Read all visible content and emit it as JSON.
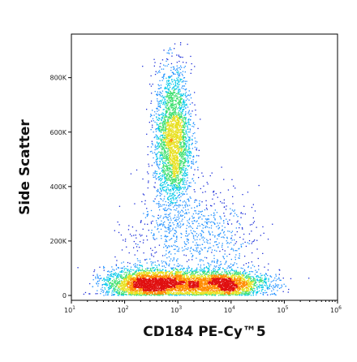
{
  "chart_data": {
    "type": "scatter",
    "style": "density-colored flow cytometry dot plot",
    "xlabel": "CD184 PE-Cy™5",
    "ylabel": "Side Scatter",
    "x_scale": "log",
    "xlim": [
      10,
      1000000
    ],
    "ylim": [
      0,
      960000
    ],
    "x_ticks": [
      {
        "value": 10,
        "base": "10",
        "exp": "1"
      },
      {
        "value": 100,
        "base": "10",
        "exp": "2"
      },
      {
        "value": 1000,
        "base": "10",
        "exp": "3"
      },
      {
        "value": 10000,
        "base": "10",
        "exp": "4"
      },
      {
        "value": 100000,
        "base": "10",
        "exp": "5"
      },
      {
        "value": 1000000,
        "base": "10",
        "exp": "6"
      }
    ],
    "y_ticks": [
      {
        "value": 0,
        "label": "0"
      },
      {
        "value": 200000,
        "label": "200K"
      },
      {
        "value": 400000,
        "label": "400K"
      },
      {
        "value": 600000,
        "label": "600K"
      },
      {
        "value": 800000,
        "label": "800K"
      }
    ],
    "grid": false,
    "legend": "none",
    "density_colors": [
      "#1a2cd8",
      "#1e90ff",
      "#00c8e8",
      "#40e070",
      "#e8e020",
      "#ff8c00",
      "#e01010"
    ],
    "populations": [
      {
        "x_center": 250,
        "y_center": 45000,
        "x_spread_decades": 0.38,
        "y_spread": 28000,
        "count": 2600
      },
      {
        "x_center": 7000,
        "y_center": 45000,
        "x_spread_decades": 0.42,
        "y_spread": 25000,
        "count": 2300
      },
      {
        "x_center": 1300,
        "y_center": 45000,
        "x_spread_decades": 0.35,
        "y_spread": 25000,
        "count": 900
      },
      {
        "x_center": 800,
        "y_center": 570000,
        "x_spread_decades": 0.17,
        "y_spread": 130000,
        "count": 2800
      },
      {
        "x_center": 5000,
        "y_center": 210000,
        "x_spread_decades": 0.4,
        "y_spread": 90000,
        "count": 450
      },
      {
        "x_center": 600,
        "y_center": 220000,
        "x_spread_decades": 0.45,
        "y_spread": 80000,
        "count": 350
      }
    ]
  }
}
